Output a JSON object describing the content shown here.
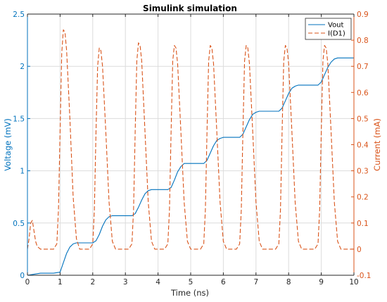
{
  "chart_data": {
    "type": "line",
    "title": "Simulink simulation",
    "xlabel": "Time (ns)",
    "ylabel_left": "Voltage (mV)",
    "ylabel_right": "Current (mA)",
    "xlim": [
      0,
      10
    ],
    "ylim_left": [
      0,
      2.5
    ],
    "ylim_right": [
      -0.1,
      0.9
    ],
    "x_ticks": [
      0,
      1,
      2,
      3,
      4,
      5,
      6,
      7,
      8,
      9,
      10
    ],
    "x_tick_labels": [
      "0",
      "1",
      "2",
      "3",
      "4",
      "5",
      "6",
      "7",
      "8",
      "9",
      "10"
    ],
    "y_left_ticks": [
      0,
      0.5,
      1,
      1.5,
      2,
      2.5
    ],
    "y_left_tick_labels": [
      "0",
      "0.5",
      "1",
      "1.5",
      "2",
      "2.5"
    ],
    "y_right_ticks": [
      -0.1,
      0,
      0.1,
      0.2,
      0.3,
      0.4,
      0.5,
      0.6,
      0.7,
      0.8,
      0.9
    ],
    "y_right_tick_labels": [
      "-0.1",
      "0",
      "0.1",
      "0.2",
      "0.3",
      "0.4",
      "0.5",
      "0.6",
      "0.7",
      "0.8",
      "0.9"
    ],
    "grid": true,
    "grid_x_only": true,
    "legend_position": "top-right",
    "colors": {
      "left_axis": "#0072BD",
      "right_axis": "#D95319",
      "grid": "#dcdcdc"
    },
    "series": [
      {
        "name": "Vout",
        "axis": "left",
        "style": "solid",
        "x": [
          0,
          0.2,
          0.4,
          0.6,
          0.8,
          1.0,
          1.1,
          1.2,
          1.3,
          1.4,
          1.5,
          2.0,
          2.1,
          2.2,
          2.3,
          2.4,
          2.5,
          2.6,
          2.7,
          3.2,
          3.3,
          3.4,
          3.5,
          3.6,
          3.7,
          3.8,
          3.9,
          4.3,
          4.4,
          4.5,
          4.6,
          4.7,
          4.8,
          4.9,
          5.0,
          5.4,
          5.5,
          5.6,
          5.7,
          5.8,
          5.9,
          6.0,
          6.1,
          6.5,
          6.6,
          6.7,
          6.8,
          6.9,
          7.0,
          7.1,
          7.2,
          7.7,
          7.8,
          7.9,
          8.0,
          8.1,
          8.2,
          8.3,
          8.4,
          8.9,
          9.0,
          9.1,
          9.2,
          9.3,
          9.4,
          9.5,
          9.6,
          10.0
        ],
        "y": [
          0,
          0.01,
          0.02,
          0.02,
          0.02,
          0.03,
          0.12,
          0.21,
          0.27,
          0.3,
          0.31,
          0.31,
          0.33,
          0.39,
          0.47,
          0.53,
          0.56,
          0.57,
          0.57,
          0.57,
          0.59,
          0.65,
          0.72,
          0.78,
          0.81,
          0.82,
          0.82,
          0.82,
          0.84,
          0.91,
          0.99,
          1.04,
          1.07,
          1.07,
          1.07,
          1.07,
          1.1,
          1.17,
          1.24,
          1.29,
          1.31,
          1.32,
          1.32,
          1.32,
          1.35,
          1.42,
          1.49,
          1.54,
          1.56,
          1.57,
          1.57,
          1.57,
          1.6,
          1.67,
          1.74,
          1.79,
          1.81,
          1.82,
          1.82,
          1.82,
          1.85,
          1.92,
          1.99,
          2.04,
          2.07,
          2.08,
          2.08,
          2.08
        ]
      },
      {
        "name": "I(D1)",
        "axis": "right",
        "style": "dashed",
        "x": [
          0,
          0.05,
          0.1,
          0.15,
          0.2,
          0.25,
          0.3,
          0.4,
          0.8,
          0.9,
          0.95,
          1.0,
          1.05,
          1.1,
          1.15,
          1.2,
          1.3,
          1.4,
          1.5,
          1.6,
          1.9,
          2.0,
          2.05,
          2.1,
          2.15,
          2.2,
          2.25,
          2.3,
          2.4,
          2.5,
          2.6,
          2.7,
          3.1,
          3.2,
          3.25,
          3.3,
          3.35,
          3.4,
          3.45,
          3.5,
          3.6,
          3.7,
          3.8,
          3.9,
          4.2,
          4.3,
          4.35,
          4.4,
          4.45,
          4.5,
          4.55,
          4.6,
          4.7,
          4.8,
          4.9,
          5.0,
          5.3,
          5.4,
          5.45,
          5.5,
          5.55,
          5.6,
          5.65,
          5.7,
          5.8,
          5.9,
          6.0,
          6.1,
          6.4,
          6.5,
          6.55,
          6.6,
          6.65,
          6.7,
          6.75,
          6.8,
          6.9,
          7.0,
          7.1,
          7.2,
          7.6,
          7.7,
          7.75,
          7.8,
          7.85,
          7.9,
          7.95,
          8.0,
          8.1,
          8.2,
          8.3,
          8.4,
          8.8,
          8.9,
          8.95,
          9.0,
          9.05,
          9.1,
          9.15,
          9.2,
          9.3,
          9.4,
          9.5,
          9.6,
          10.0
        ],
        "y": [
          0,
          0.04,
          0.1,
          0.11,
          0.07,
          0.03,
          0.01,
          0,
          0,
          0.02,
          0.15,
          0.45,
          0.75,
          0.84,
          0.83,
          0.76,
          0.5,
          0.2,
          0.04,
          0,
          0,
          0.02,
          0.15,
          0.45,
          0.7,
          0.77,
          0.76,
          0.7,
          0.45,
          0.18,
          0.03,
          0,
          0,
          0.02,
          0.15,
          0.45,
          0.72,
          0.79,
          0.78,
          0.72,
          0.45,
          0.18,
          0.03,
          0,
          0,
          0.02,
          0.15,
          0.45,
          0.72,
          0.78,
          0.77,
          0.71,
          0.45,
          0.18,
          0.03,
          0,
          0,
          0.02,
          0.15,
          0.45,
          0.72,
          0.78,
          0.77,
          0.71,
          0.45,
          0.18,
          0.03,
          0,
          0,
          0.02,
          0.15,
          0.45,
          0.72,
          0.78,
          0.77,
          0.71,
          0.45,
          0.18,
          0.03,
          0,
          0,
          0.02,
          0.15,
          0.45,
          0.72,
          0.78,
          0.77,
          0.71,
          0.45,
          0.18,
          0.03,
          0,
          0,
          0.02,
          0.15,
          0.45,
          0.72,
          0.78,
          0.77,
          0.71,
          0.45,
          0.18,
          0.03,
          0,
          0
        ]
      }
    ]
  }
}
